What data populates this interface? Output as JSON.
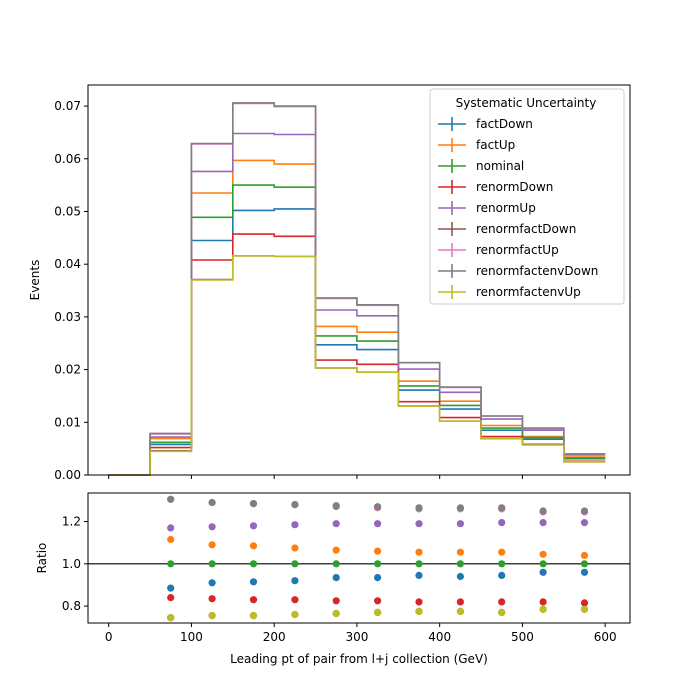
{
  "chart_data": [
    {
      "type": "line",
      "ylabel": "Events",
      "ylim": [
        0,
        0.074
      ],
      "yticks": [
        0.0,
        0.01,
        0.02,
        0.03,
        0.04,
        0.05,
        0.06,
        0.07
      ],
      "ytick_labels": [
        "0.00",
        "0.01",
        "0.02",
        "0.03",
        "0.04",
        "0.05",
        "0.06",
        "0.07"
      ],
      "xlim": [
        -25,
        630
      ],
      "bin_edges": [
        0,
        50,
        100,
        150,
        200,
        250,
        300,
        350,
        400,
        450,
        500,
        550,
        600
      ],
      "legend_title": "Systematic Uncertainty",
      "legend_location": "top-right",
      "series": [
        {
          "name": "factDown",
          "color": "#1f77b4",
          "values": [
            0.0,
            0.0058,
            0.0445,
            0.0502,
            0.0505,
            0.0247,
            0.0238,
            0.0161,
            0.0125,
            0.0085,
            0.0068,
            0.0031
          ]
        },
        {
          "name": "factUp",
          "color": "#ff7f0e",
          "values": [
            0.0,
            0.0069,
            0.0535,
            0.0597,
            0.059,
            0.0282,
            0.0271,
            0.0178,
            0.014,
            0.0094,
            0.0073,
            0.0034
          ]
        },
        {
          "name": "nominal",
          "color": "#2ca02c",
          "values": [
            0.0,
            0.0062,
            0.0489,
            0.055,
            0.0546,
            0.0264,
            0.0254,
            0.0169,
            0.0132,
            0.0089,
            0.0071,
            0.0032
          ]
        },
        {
          "name": "renormDown",
          "color": "#d62728",
          "values": [
            0.0,
            0.0052,
            0.0408,
            0.0457,
            0.0453,
            0.0218,
            0.021,
            0.0139,
            0.0109,
            0.0073,
            0.0058,
            0.0026
          ]
        },
        {
          "name": "renormUp",
          "color": "#9467bd",
          "values": [
            0.0,
            0.0072,
            0.0576,
            0.0648,
            0.0646,
            0.0313,
            0.0302,
            0.0201,
            0.0157,
            0.0106,
            0.0085,
            0.0038
          ]
        },
        {
          "name": "renormfactDown",
          "color": "#8c564b",
          "values": [
            0.0,
            0.0046,
            0.0371,
            0.0416,
            0.0415,
            0.0203,
            0.0195,
            0.0131,
            0.0102,
            0.0069,
            0.0058,
            0.0025
          ]
        },
        {
          "name": "renormfactUp",
          "color": "#e377c2",
          "values": [
            0.0,
            0.0078,
            0.0628,
            0.0705,
            0.0699,
            0.0335,
            0.0322,
            0.0213,
            0.0166,
            0.0112,
            0.0088,
            0.004
          ]
        },
        {
          "name": "renormfactenvDown",
          "color": "#7f7f7f",
          "values": [
            0.0,
            0.0079,
            0.0629,
            0.0706,
            0.07,
            0.0336,
            0.0323,
            0.0213,
            0.0167,
            0.0112,
            0.0089,
            0.004
          ]
        },
        {
          "name": "renormfactenvUp",
          "color": "#bcbd22",
          "values": [
            0.0,
            0.0045,
            0.037,
            0.0416,
            0.0415,
            0.0203,
            0.0195,
            0.0131,
            0.0102,
            0.0069,
            0.0057,
            0.0025
          ]
        }
      ]
    },
    {
      "type": "scatter",
      "xlabel": "Leading pt of pair from l+j collection (GeV)",
      "ylabel": "Ratio",
      "xlim": [
        -25,
        630
      ],
      "ylim": [
        0.72,
        1.335
      ],
      "xticks": [
        0,
        100,
        200,
        300,
        400,
        500,
        600
      ],
      "xtick_labels": [
        "0",
        "100",
        "200",
        "300",
        "400",
        "500",
        "600"
      ],
      "yticks": [
        0.8,
        1.0,
        1.2
      ],
      "ytick_labels": [
        "0.8",
        "1.0",
        "1.2"
      ],
      "reference_line": 1.0,
      "x": [
        75,
        125,
        175,
        225,
        275,
        325,
        375,
        425,
        475,
        525,
        575
      ],
      "series": [
        {
          "name": "factDown",
          "color": "#1f77b4",
          "values": [
            0.885,
            0.91,
            0.915,
            0.92,
            0.935,
            0.935,
            0.945,
            0.94,
            0.945,
            0.96,
            0.96
          ]
        },
        {
          "name": "factUp",
          "color": "#ff7f0e",
          "values": [
            1.115,
            1.09,
            1.085,
            1.075,
            1.065,
            1.06,
            1.055,
            1.055,
            1.055,
            1.045,
            1.04
          ]
        },
        {
          "name": "nominal",
          "color": "#2ca02c",
          "values": [
            1.0,
            1.0,
            1.0,
            1.0,
            1.0,
            1.0,
            1.0,
            1.0,
            1.0,
            1.0,
            1.0
          ]
        },
        {
          "name": "renormDown",
          "color": "#d62728",
          "values": [
            0.84,
            0.835,
            0.83,
            0.83,
            0.825,
            0.825,
            0.82,
            0.82,
            0.82,
            0.82,
            0.815
          ]
        },
        {
          "name": "renormUp",
          "color": "#9467bd",
          "values": [
            1.17,
            1.175,
            1.18,
            1.185,
            1.19,
            1.19,
            1.19,
            1.19,
            1.195,
            1.195,
            1.195
          ]
        },
        {
          "name": "renormfactDown",
          "color": "#8c564b",
          "values": [
            0.745,
            0.755,
            0.755,
            0.76,
            0.765,
            0.77,
            0.775,
            0.775,
            0.77,
            0.785,
            0.785
          ]
        },
        {
          "name": "renormfactUp",
          "color": "#e377c2",
          "values": [
            1.305,
            1.29,
            1.285,
            1.28,
            1.27,
            1.265,
            1.26,
            1.26,
            1.26,
            1.245,
            1.245
          ]
        },
        {
          "name": "renormfactenvDown",
          "color": "#7f7f7f",
          "values": [
            1.305,
            1.29,
            1.285,
            1.28,
            1.275,
            1.27,
            1.265,
            1.265,
            1.265,
            1.25,
            1.25
          ]
        },
        {
          "name": "renormfactenvUp",
          "color": "#bcbd22",
          "values": [
            0.745,
            0.755,
            0.755,
            0.76,
            0.765,
            0.77,
            0.775,
            0.775,
            0.77,
            0.785,
            0.785
          ]
        }
      ]
    }
  ]
}
